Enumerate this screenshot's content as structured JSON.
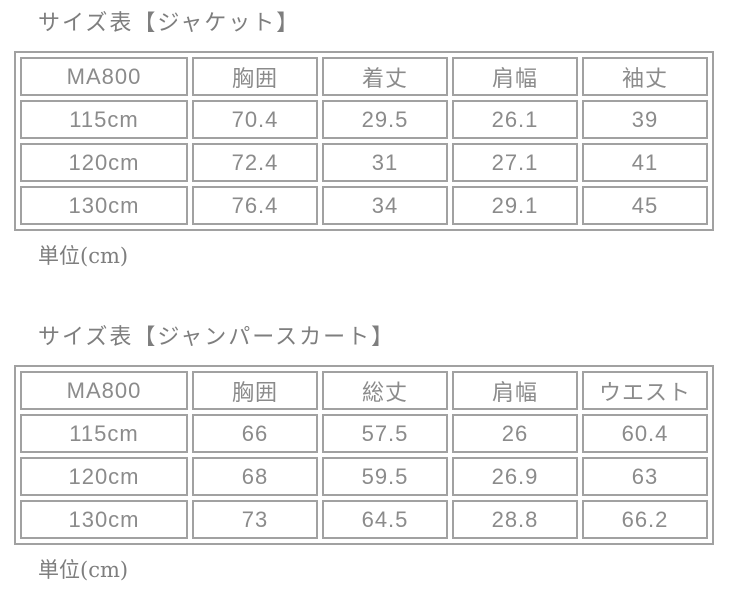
{
  "colors": {
    "background": "#ffffff",
    "table_border": "#a1a1a1",
    "cell_text": "#8b8b8b",
    "title_text": "#7e7e7e"
  },
  "sections": [
    {
      "title": "サイズ表【ジャケット】",
      "unit_note": "単位(cm)",
      "headers": [
        "MA800",
        "胸囲",
        "着丈",
        "肩幅",
        "袖丈"
      ],
      "rows": [
        [
          "115cm",
          "70.4",
          "29.5",
          "26.1",
          "39"
        ],
        [
          "120cm",
          "72.4",
          "31",
          "27.1",
          "41"
        ],
        [
          "130cm",
          "76.4",
          "34",
          "29.1",
          "45"
        ]
      ]
    },
    {
      "title": "サイズ表【ジャンパースカート】",
      "unit_note": "単位(cm)",
      "headers": [
        "MA800",
        "胸囲",
        "総丈",
        "肩幅",
        "ウエスト"
      ],
      "rows": [
        [
          "115cm",
          "66",
          "57.5",
          "26",
          "60.4"
        ],
        [
          "120cm",
          "68",
          "59.5",
          "26.9",
          "63"
        ],
        [
          "130cm",
          "73",
          "64.5",
          "28.8",
          "66.2"
        ]
      ]
    }
  ]
}
